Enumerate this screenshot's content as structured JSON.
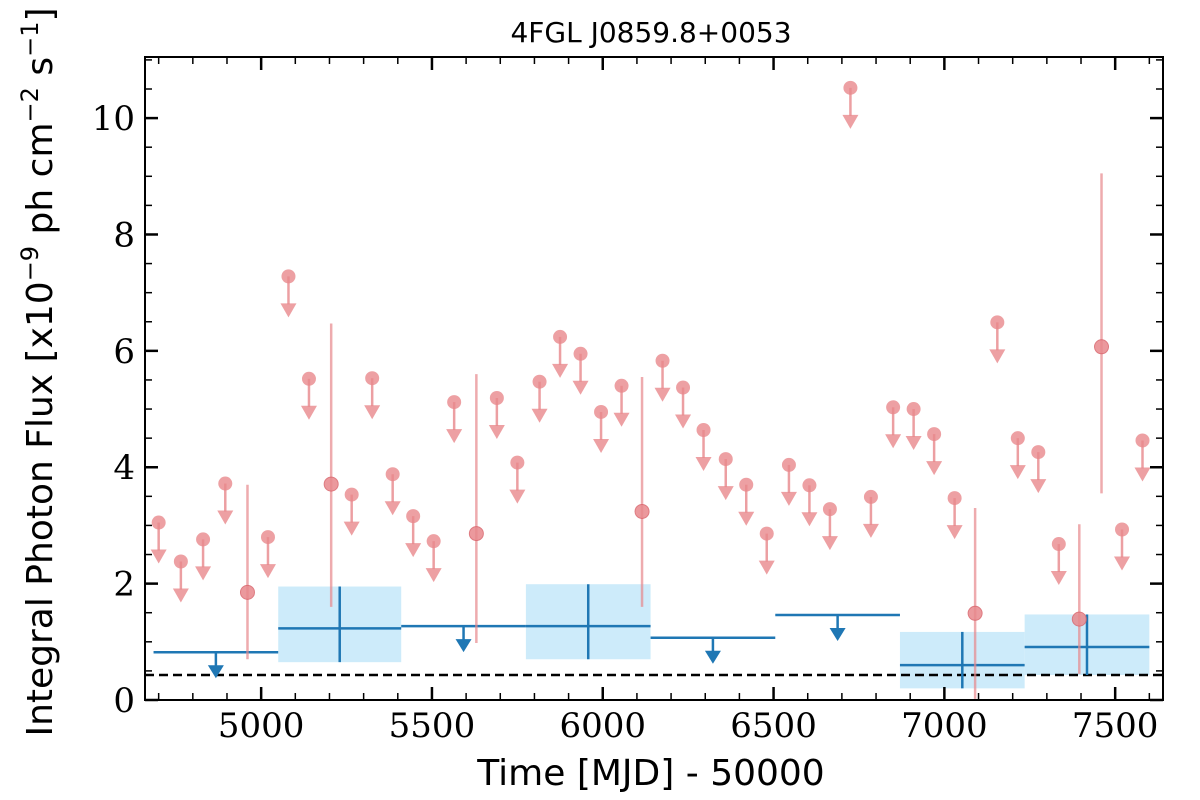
{
  "chart_data": {
    "type": "scatter",
    "title": "4FGL J0859.8+0053",
    "xlabel": "Time [MJD] - 50000",
    "ylabel": "Integral Photon Flux [x10$^{-9}$ ph cm$^{-2}$ s$^{-1}$]",
    "xlim": [
      4660,
      7640
    ],
    "ylim": [
      0,
      11.05
    ],
    "xticks": [
      5000,
      5500,
      6000,
      6500,
      7000,
      7500
    ],
    "yticks": [
      0,
      2,
      4,
      6,
      8,
      10
    ],
    "xtick_labels": [
      "5000",
      "5500",
      "6000",
      "6500",
      "7000",
      "7500"
    ],
    "ytick_labels": [
      "0",
      "2",
      "4",
      "6",
      "8",
      "10"
    ],
    "reference_line": {
      "y": 0.43,
      "style": "dashed",
      "color": "#000000"
    },
    "colors": {
      "short_bins": "#e8888c",
      "long_bins": "#1f77b4",
      "long_bin_band": "#cdebfa"
    },
    "series": [
      {
        "bin": "short",
        "upper_limits": [
          {
            "x": 4700,
            "y": 3.05
          },
          {
            "x": 4765,
            "y": 2.38
          },
          {
            "x": 4830,
            "y": 2.76
          },
          {
            "x": 4895,
            "y": 3.72
          },
          {
            "x": 5020,
            "y": 2.8
          },
          {
            "x": 5080,
            "y": 7.28
          },
          {
            "x": 5140,
            "y": 5.52
          },
          {
            "x": 5265,
            "y": 3.53
          },
          {
            "x": 5325,
            "y": 5.53
          },
          {
            "x": 5385,
            "y": 3.88
          },
          {
            "x": 5445,
            "y": 3.16
          },
          {
            "x": 5505,
            "y": 2.73
          },
          {
            "x": 5565,
            "y": 5.12
          },
          {
            "x": 5690,
            "y": 5.19
          },
          {
            "x": 5750,
            "y": 4.08
          },
          {
            "x": 5815,
            "y": 5.47
          },
          {
            "x": 5875,
            "y": 6.24
          },
          {
            "x": 5935,
            "y": 5.95
          },
          {
            "x": 5995,
            "y": 4.95
          },
          {
            "x": 6055,
            "y": 5.4
          },
          {
            "x": 6175,
            "y": 5.83
          },
          {
            "x": 6235,
            "y": 5.37
          },
          {
            "x": 6295,
            "y": 4.64
          },
          {
            "x": 6360,
            "y": 4.14
          },
          {
            "x": 6420,
            "y": 3.7
          },
          {
            "x": 6480,
            "y": 2.86
          },
          {
            "x": 6545,
            "y": 4.04
          },
          {
            "x": 6605,
            "y": 3.69
          },
          {
            "x": 6665,
            "y": 3.28
          },
          {
            "x": 6725,
            "y": 10.52
          },
          {
            "x": 6785,
            "y": 3.49
          },
          {
            "x": 6850,
            "y": 5.03
          },
          {
            "x": 6910,
            "y": 5.0
          },
          {
            "x": 6970,
            "y": 4.57
          },
          {
            "x": 7030,
            "y": 3.47
          },
          {
            "x": 7155,
            "y": 6.49
          },
          {
            "x": 7215,
            "y": 4.5
          },
          {
            "x": 7275,
            "y": 4.26
          },
          {
            "x": 7335,
            "y": 2.68
          },
          {
            "x": 7520,
            "y": 2.93
          },
          {
            "x": 7580,
            "y": 4.46
          }
        ],
        "detections": [
          {
            "x": 4960,
            "y": 1.85,
            "ylow": 0.7,
            "yhigh": 3.7
          },
          {
            "x": 5205,
            "y": 3.71,
            "ylow": 1.6,
            "yhigh": 6.47
          },
          {
            "x": 5630,
            "y": 2.86,
            "ylow": 0.98,
            "yhigh": 5.6
          },
          {
            "x": 6115,
            "y": 3.24,
            "ylow": 1.6,
            "yhigh": 5.55
          },
          {
            "x": 7090,
            "y": 1.49,
            "ylow": 0.02,
            "yhigh": 3.3
          },
          {
            "x": 7395,
            "y": 1.39,
            "ylow": 0.45,
            "yhigh": 3.02
          },
          {
            "x": 7460,
            "y": 6.07,
            "ylow": 3.55,
            "yhigh": 9.05
          }
        ]
      },
      {
        "bin": "long",
        "upper_limits": [
          {
            "xmin": 4685,
            "xmax": 5050,
            "y": 0.82
          },
          {
            "xmin": 5410,
            "xmax": 5775,
            "y": 1.27
          },
          {
            "xmin": 6140,
            "xmax": 6505,
            "y": 1.07
          },
          {
            "xmin": 6505,
            "xmax": 6870,
            "y": 1.46
          }
        ],
        "detections": [
          {
            "xmin": 5050,
            "xmax": 5410,
            "y": 1.23,
            "ylow": 0.65,
            "yhigh": 1.95
          },
          {
            "xmin": 5775,
            "xmax": 6140,
            "y": 1.27,
            "ylow": 0.7,
            "yhigh": 1.99
          },
          {
            "xmin": 6870,
            "xmax": 7235,
            "y": 0.6,
            "ylow": 0.2,
            "yhigh": 1.17
          },
          {
            "xmin": 7235,
            "xmax": 7600,
            "y": 0.91,
            "ylow": 0.43,
            "yhigh": 1.47
          }
        ]
      }
    ]
  }
}
